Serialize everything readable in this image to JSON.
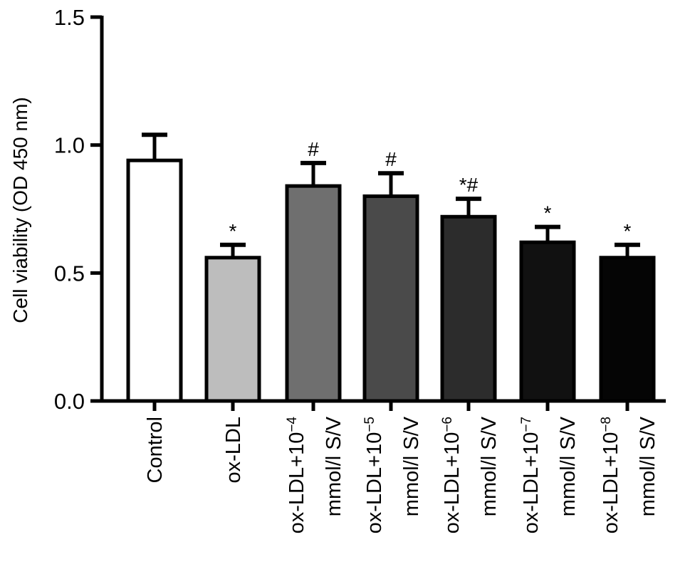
{
  "chart_data": {
    "type": "bar",
    "title": "",
    "xlabel": "",
    "ylabel": "Cell viability (OD 450 nm)",
    "ylim": [
      0,
      1.5
    ],
    "yticks": [
      "0.0",
      "0.5",
      "1.0",
      "1.5"
    ],
    "ytick_values": [
      0,
      0.5,
      1.0,
      1.5
    ],
    "categories": [
      {
        "line1": "Control",
        "sup": "",
        "line2": ""
      },
      {
        "line1": "ox-LDL",
        "sup": "",
        "line2": ""
      },
      {
        "line1": "ox-LDL+10",
        "sup": "−4",
        "line2": "mmol/l S/V"
      },
      {
        "line1": "ox-LDL+10",
        "sup": "−5",
        "line2": "mmol/l S/V"
      },
      {
        "line1": "ox-LDL+10",
        "sup": "−6",
        "line2": "mmol/l S/V"
      },
      {
        "line1": "ox-LDL+10",
        "sup": "−7",
        "line2": "mmol/l S/V"
      },
      {
        "line1": "ox-LDL+10",
        "sup": "−8",
        "line2": "mmol/l S/V"
      }
    ],
    "values": [
      0.94,
      0.56,
      0.84,
      0.8,
      0.72,
      0.62,
      0.56
    ],
    "errors": [
      0.1,
      0.05,
      0.09,
      0.09,
      0.07,
      0.06,
      0.05
    ],
    "annotations": [
      "",
      "*",
      "#",
      "#",
      "*#",
      "*",
      "*"
    ],
    "colors": [
      "#ffffff",
      "#bdbdbd",
      "#6f6f6f",
      "#4a4a4a",
      "#2c2c2c",
      "#111111",
      "#050505"
    ]
  }
}
